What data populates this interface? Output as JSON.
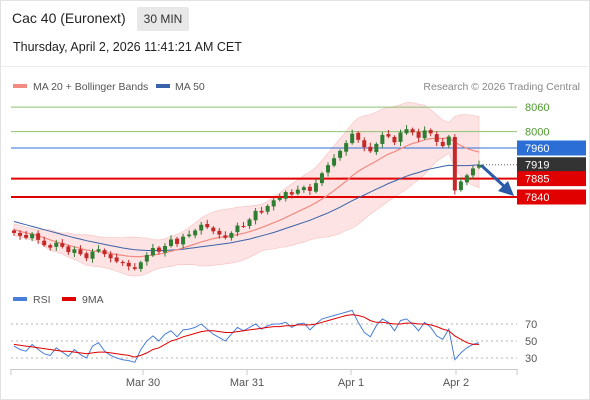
{
  "header": {
    "instrument": "Cac 40 (Euronext)",
    "timeframe": "30 MIN",
    "datetime": "Thursday, April 2, 2026 11:41:21 AM CET"
  },
  "legend": {
    "ma20_bollinger": "MA 20 + Bollinger Bands",
    "ma50": "MA 50",
    "credit": "Research © 2026 Trading Central"
  },
  "colors": {
    "bull_candle": "#2e7d32",
    "bear_candle": "#c62828",
    "ma20": "#f28b82",
    "ma50": "#3a62a8",
    "bollinger_fill": "#fde3e3",
    "support": "#e00000",
    "resistance_blue": "#2b6fd6",
    "target_green": "#8dc26f",
    "current_price": "#333333",
    "rsi": "#4a7fd9",
    "rsi_9ma": "#e00000",
    "arrow": "#2b5aa7"
  },
  "price_levels": [
    {
      "value": 8060,
      "label": "8060",
      "kind": "target",
      "color": "#8dc26f"
    },
    {
      "value": 8000,
      "label": "8000",
      "kind": "target",
      "color": "#8dc26f"
    },
    {
      "value": 7960,
      "label": "7960",
      "kind": "pivot",
      "color": "#2b6fd6"
    },
    {
      "value": 7919,
      "label": "7919",
      "kind": "current",
      "color": "#333333"
    },
    {
      "value": 7885,
      "label": "7885",
      "kind": "support",
      "color": "#e00000"
    },
    {
      "value": 7840,
      "label": "7840",
      "kind": "support",
      "color": "#e00000"
    }
  ],
  "x_axis": {
    "labels": [
      "Mar 30",
      "Mar 31",
      "Apr 1",
      "Apr 2"
    ]
  },
  "rsi_panel": {
    "legend_rsi": "RSI",
    "legend_ma": "9MA",
    "levels": [
      70,
      50,
      30
    ],
    "level_labels": [
      "70",
      "50",
      "30"
    ]
  },
  "chart_data": {
    "type": "candlestick",
    "timeframe_minutes": 30,
    "y_range": [
      7680,
      8090
    ],
    "closes": [
      7752,
      7745,
      7740,
      7750,
      7735,
      7722,
      7716,
      7728,
      7718,
      7705,
      7712,
      7700,
      7690,
      7706,
      7712,
      7700,
      7690,
      7682,
      7678,
      7670,
      7664,
      7680,
      7698,
      7715,
      7706,
      7720,
      7736,
      7725,
      7743,
      7748,
      7758,
      7772,
      7766,
      7756,
      7748,
      7740,
      7752,
      7770,
      7768,
      7785,
      7806,
      7802,
      7818,
      7832,
      7838,
      7852,
      7846,
      7858,
      7864,
      7855,
      7874,
      7898,
      7918,
      7935,
      7953,
      7972,
      7995,
      7980,
      7962,
      7952,
      7970,
      7992,
      7988,
      7974,
      7998,
      8006,
      7998,
      7985,
      8003,
      7996,
      7975,
      7965,
      7988,
      7856,
      7878,
      7893,
      7910,
      7919
    ],
    "series": [
      {
        "name": "MA 20",
        "values": [
          7760,
          7756,
          7752,
          7749,
          7745,
          7740,
          7735,
          7730,
          7726,
          7722,
          7718,
          7714,
          7710,
          7708,
          7706,
          7704,
          7702,
          7699,
          7697,
          7695,
          7694,
          7694,
          7696,
          7698,
          7700,
          7703,
          7707,
          7711,
          7715,
          7720,
          7725,
          7730,
          7734,
          7738,
          7741,
          7743,
          7745,
          7748,
          7751,
          7755,
          7760,
          7765,
          7771,
          7777,
          7783,
          7790,
          7797,
          7804,
          7811,
          7818,
          7826,
          7835,
          7845,
          7856,
          7867,
          7879,
          7892,
          7903,
          7912,
          7920,
          7928,
          7937,
          7945,
          7951,
          7958,
          7965,
          7971,
          7975,
          7980,
          7983,
          7984,
          7983,
          7985,
          7974,
          7966,
          7959,
          7954,
          7950
        ]
      },
      {
        "name": "MA 50",
        "values": [
          7780,
          7776,
          7772,
          7768,
          7764,
          7760,
          7756,
          7752,
          7748,
          7744,
          7740,
          7737,
          7733,
          7730,
          7727,
          7724,
          7721,
          7718,
          7715,
          7713,
          7711,
          7710,
          7709,
          7709,
          7709,
          7709,
          7710,
          7711,
          7712,
          7714,
          7716,
          7718,
          7720,
          7722,
          7724,
          7726,
          7728,
          7731,
          7734,
          7737,
          7741,
          7745,
          7749,
          7753,
          7758,
          7763,
          7768,
          7773,
          7778,
          7783,
          7789,
          7795,
          7801,
          7808,
          7815,
          7823,
          7831,
          7838,
          7845,
          7852,
          7859,
          7866,
          7873,
          7879,
          7885,
          7891,
          7896,
          7900,
          7905,
          7909,
          7912,
          7915,
          7918,
          7917,
          7917,
          7917,
          7918,
          7919
        ]
      }
    ],
    "rsi": [
      44,
      40,
      38,
      46,
      40,
      35,
      33,
      42,
      37,
      32,
      40,
      34,
      30,
      44,
      48,
      38,
      33,
      30,
      28,
      27,
      25,
      40,
      50,
      56,
      50,
      58,
      62,
      55,
      63,
      64,
      66,
      70,
      64,
      58,
      54,
      50,
      58,
      66,
      62,
      66,
      70,
      64,
      68,
      70,
      70,
      72,
      66,
      70,
      71,
      63,
      70,
      76,
      78,
      80,
      82,
      84,
      86,
      72,
      60,
      55,
      68,
      76,
      72,
      62,
      74,
      76,
      70,
      62,
      72,
      66,
      56,
      52,
      64,
      28,
      36,
      42,
      46,
      48
    ],
    "rsi_9ma": [
      46,
      45,
      44,
      43,
      42,
      41,
      40,
      39,
      38,
      38,
      37,
      36,
      35,
      36,
      37,
      37,
      36,
      35,
      34,
      33,
      31,
      33,
      36,
      40,
      42,
      46,
      50,
      52,
      55,
      57,
      59,
      61,
      62,
      62,
      61,
      60,
      60,
      61,
      62,
      63,
      64,
      65,
      66,
      67,
      67,
      68,
      68,
      69,
      69,
      69,
      70,
      72,
      74,
      76,
      78,
      80,
      81,
      80,
      78,
      74,
      72,
      72,
      71,
      70,
      70,
      71,
      71,
      70,
      70,
      69,
      67,
      64,
      62,
      56,
      52,
      48,
      46,
      46
    ]
  }
}
